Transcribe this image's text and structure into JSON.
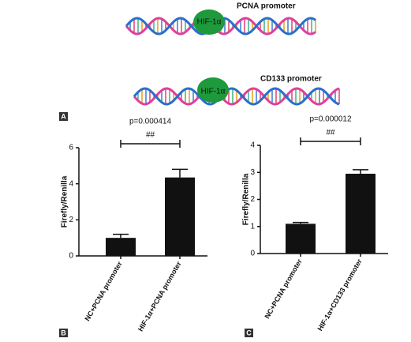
{
  "diagram": {
    "promoter_1": "PCNA promoter",
    "factor_1": "HIF-1α",
    "promoter_2": "CD133 promoter",
    "factor_2": "HIF-1α"
  },
  "panel_labels": [
    "A",
    "B",
    "C"
  ],
  "chart_data": [
    {
      "type": "bar",
      "y_label": "Firefly/Renilla",
      "annotation": "p=0.000414",
      "significance": "##",
      "categories": [
        "NC+PCNA promoter",
        "HIF-1α+PCNA promoter"
      ],
      "values": [
        1.0,
        4.35
      ],
      "errors": [
        0.2,
        0.45
      ],
      "color": "#111111",
      "ylim": [
        0,
        6
      ],
      "yticks": [
        0,
        2,
        4,
        6
      ]
    },
    {
      "type": "bar",
      "y_label": "Firefly/Renilla",
      "annotation": "p=0.000012",
      "significance": "##",
      "categories": [
        "NC+PCNA promoter",
        "HIF-1α+CD133 promoter"
      ],
      "values": [
        1.1,
        2.95
      ],
      "errors": [
        0.05,
        0.15
      ],
      "color": "#111111",
      "ylim": [
        0,
        4
      ],
      "yticks": [
        0,
        1,
        2,
        3,
        4
      ]
    }
  ]
}
